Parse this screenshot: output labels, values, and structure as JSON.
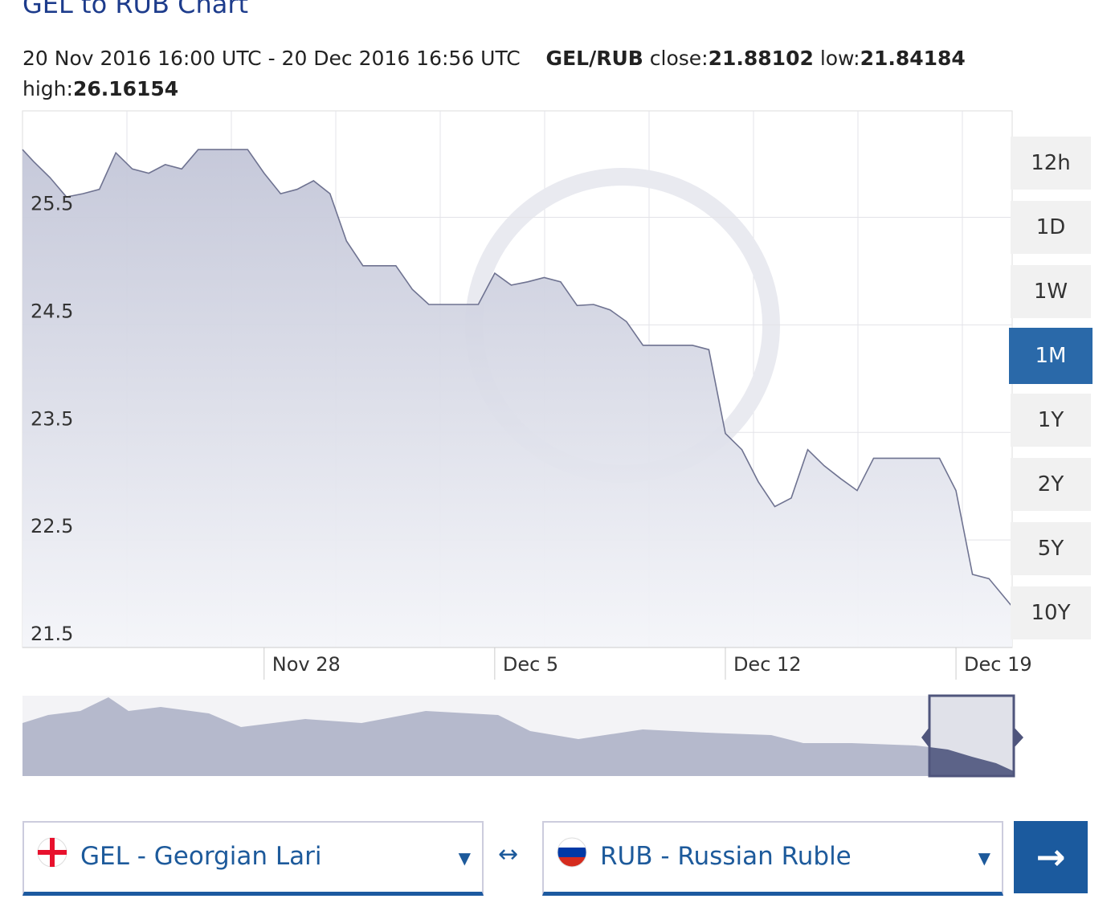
{
  "header": {
    "title": "GEL to RUB Chart",
    "range": "20 Nov 2016 16:00 UTC - 20 Dec 2016 16:56 UTC",
    "pair": "GEL/RUB",
    "stats": [
      {
        "label": "close:",
        "value": "21.88102"
      },
      {
        "label": "low:",
        "value": "21.84184"
      },
      {
        "label": "high:",
        "value": "26.16154"
      }
    ]
  },
  "chart_data": {
    "type": "area",
    "x": [
      "2016-11-20T16:00",
      "2016-11-21T00:00",
      "2016-11-21T12:00",
      "2016-11-22T00:00",
      "2016-11-22T12:00",
      "2016-11-23T00:00",
      "2016-11-23T12:00",
      "2016-11-24T00:00",
      "2016-11-24T12:00",
      "2016-11-25T00:00",
      "2016-11-25T12:00",
      "2016-11-26T00:00",
      "2016-11-26T12:00",
      "2016-11-27T00:00",
      "2016-11-27T12:00",
      "2016-11-28T00:00",
      "2016-11-28T12:00",
      "2016-11-29T00:00",
      "2016-11-29T12:00",
      "2016-11-30T00:00",
      "2016-11-30T12:00",
      "2016-12-01T00:00",
      "2016-12-01T12:00",
      "2016-12-02T00:00",
      "2016-12-02T12:00",
      "2016-12-03T00:00",
      "2016-12-03T12:00",
      "2016-12-04T00:00",
      "2016-12-04T12:00",
      "2016-12-05T00:00",
      "2016-12-05T12:00",
      "2016-12-06T00:00",
      "2016-12-06T12:00",
      "2016-12-07T00:00",
      "2016-12-07T12:00",
      "2016-12-08T00:00",
      "2016-12-08T12:00",
      "2016-12-09T00:00",
      "2016-12-09T12:00",
      "2016-12-10T00:00",
      "2016-12-10T12:00",
      "2016-12-11T00:00",
      "2016-12-11T12:00",
      "2016-12-12T00:00",
      "2016-12-12T12:00",
      "2016-12-13T00:00",
      "2016-12-13T12:00",
      "2016-12-14T00:00",
      "2016-12-14T12:00",
      "2016-12-15T00:00",
      "2016-12-15T12:00",
      "2016-12-16T00:00",
      "2016-12-16T12:00",
      "2016-12-17T00:00",
      "2016-12-17T12:00",
      "2016-12-18T00:00",
      "2016-12-18T12:00",
      "2016-12-19T00:00",
      "2016-12-19T12:00",
      "2016-12-20T00:00",
      "2016-12-20T16:56"
    ],
    "series": [
      {
        "name": "GEL/RUB",
        "color": "#6f7391",
        "values": [
          26.13,
          26.02,
          25.87,
          25.69,
          25.72,
          25.76,
          26.1,
          25.95,
          25.91,
          25.99,
          25.95,
          26.13,
          26.13,
          26.13,
          26.13,
          25.91,
          25.72,
          25.76,
          25.84,
          25.72,
          25.28,
          25.05,
          25.05,
          25.05,
          24.83,
          24.69,
          24.69,
          24.69,
          24.69,
          24.98,
          24.87,
          24.9,
          24.94,
          24.9,
          24.68,
          24.69,
          24.64,
          24.53,
          24.31,
          24.31,
          24.31,
          24.31,
          24.27,
          23.49,
          23.34,
          23.04,
          22.81,
          22.89,
          23.34,
          23.19,
          23.07,
          22.96,
          23.26,
          23.26,
          23.26,
          23.26,
          23.26,
          22.96,
          22.18,
          22.14,
          21.88
        ]
      }
    ],
    "xlim": [
      "2016-11-20T16:00",
      "2016-12-20T16:56"
    ],
    "xticks": [
      {
        "value": "2016-11-28T00:00",
        "label": "Nov 28"
      },
      {
        "value": "2016-12-05T00:00",
        "label": "Dec 5"
      },
      {
        "value": "2016-12-12T00:00",
        "label": "Dec 12"
      },
      {
        "value": "2016-12-19T00:00",
        "label": "Dec 19"
      }
    ],
    "ylim": [
      21.5,
      26.49
    ],
    "yticks": [
      21.5,
      22.5,
      23.5,
      24.5,
      25.5
    ],
    "grid": true
  },
  "range_buttons": {
    "options": [
      "12h",
      "1D",
      "1W",
      "1M",
      "1Y",
      "2Y",
      "5Y",
      "10Y"
    ],
    "active": 3
  },
  "converter": {
    "from": "GEL - Georgian Lari",
    "swap": "↔",
    "to": "RUB - Russian Ruble",
    "dropdown": "▼",
    "submit": "→"
  }
}
